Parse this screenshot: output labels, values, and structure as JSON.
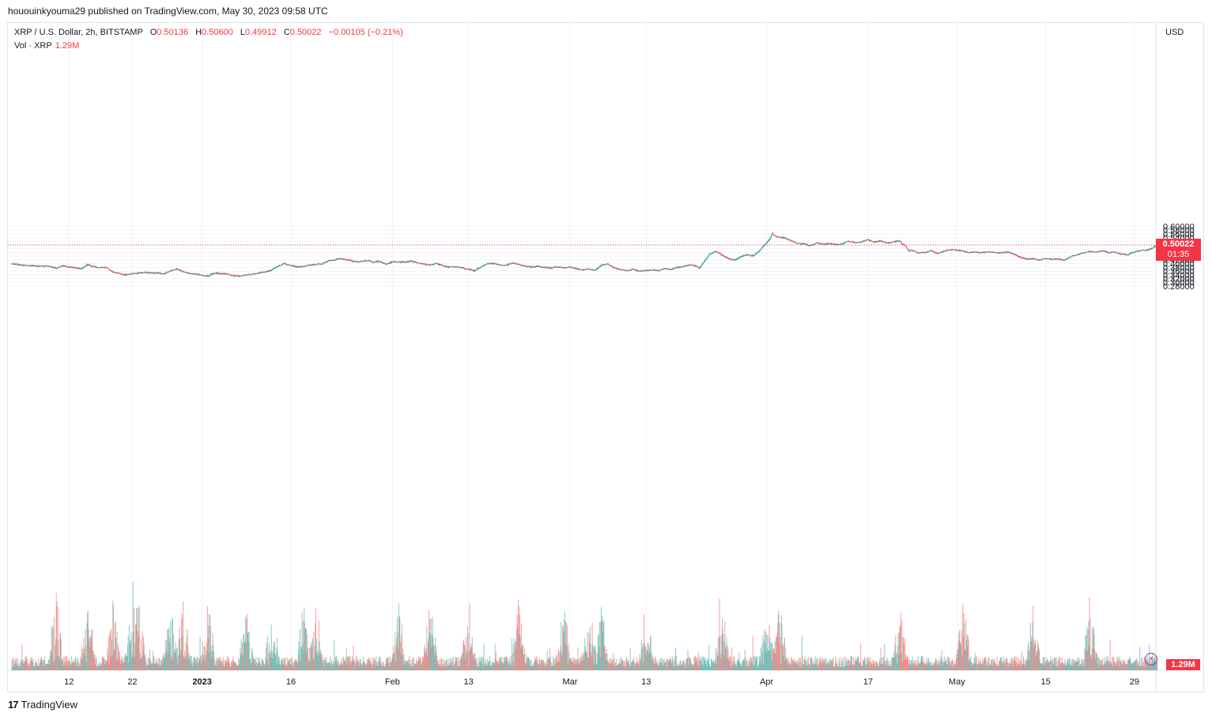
{
  "published": "hououinkyouma29 published on TradingView.com, May 30, 2023 09:58 UTC",
  "legend": {
    "symbol": "XRP / U.S. Dollar, 2h, BITSTAMP",
    "o_label": "O",
    "o_value": "0.50136",
    "h_label": "H",
    "h_value": "0.50600",
    "l_label": "L",
    "l_value": "0.49912",
    "c_label": "C",
    "c_value": "0.50022",
    "change": "−0.00105 (−0.21%)",
    "vol_label": "Vol · XRP",
    "vol_value": "1.29M"
  },
  "currency": "USD",
  "last_price": {
    "price": "0.50022",
    "countdown": "01:35"
  },
  "last_volume": "1.29M",
  "footer": {
    "logo": "17",
    "brand": "TradingView"
  },
  "colors": {
    "up": "#26a69a",
    "down": "#ef5350",
    "grid": "#f0f3fa",
    "price_line": "#f23645"
  },
  "chart_data": {
    "type": "candlestick",
    "title": "XRP / U.S. Dollar, 2h, BITSTAMP",
    "ylabel": "USD",
    "ylim": [
      0.27,
      0.61
    ],
    "yticks": [
      "0.60000",
      "0.58000",
      "0.56000",
      "0.54000",
      "0.52000",
      "0.50000",
      "0.48000",
      "0.46000",
      "0.44000",
      "0.42000",
      "0.40000",
      "0.38000",
      "0.36000",
      "0.34000",
      "0.32000",
      "0.30000",
      "0.28000"
    ],
    "ytick_values": [
      0.6,
      0.58,
      0.56,
      0.54,
      0.52,
      0.5,
      0.48,
      0.46,
      0.44,
      0.42,
      0.4,
      0.38,
      0.36,
      0.34,
      0.32,
      0.3,
      0.28
    ],
    "xticks": [
      {
        "label": "12",
        "day": 9
      },
      {
        "label": "22",
        "day": 19
      },
      {
        "label": "2023",
        "day": 30
      },
      {
        "label": "16",
        "day": 44
      },
      {
        "label": "Feb",
        "day": 60
      },
      {
        "label": "13",
        "day": 72
      },
      {
        "label": "Mar",
        "day": 88
      },
      {
        "label": "13",
        "day": 100
      },
      {
        "label": "Apr",
        "day": 119
      },
      {
        "label": "17",
        "day": 135
      },
      {
        "label": "May",
        "day": 149
      },
      {
        "label": "15",
        "day": 163
      },
      {
        "label": "29",
        "day": 177
      }
    ],
    "x_range_days": [
      -1,
      180
    ],
    "bars_per_day": 12,
    "close_path": [
      [
        0,
        0.4
      ],
      [
        2,
        0.392
      ],
      [
        4,
        0.388
      ],
      [
        6,
        0.386
      ],
      [
        7,
        0.375
      ],
      [
        8,
        0.388
      ],
      [
        10,
        0.378
      ],
      [
        11,
        0.372
      ],
      [
        12,
        0.396
      ],
      [
        13,
        0.382
      ],
      [
        15,
        0.38
      ],
      [
        16,
        0.356
      ],
      [
        17,
        0.348
      ],
      [
        18,
        0.34
      ],
      [
        19,
        0.346
      ],
      [
        21,
        0.352
      ],
      [
        23,
        0.35
      ],
      [
        24,
        0.346
      ],
      [
        25,
        0.36
      ],
      [
        26,
        0.372
      ],
      [
        27,
        0.358
      ],
      [
        28,
        0.348
      ],
      [
        29,
        0.344
      ],
      [
        30,
        0.338
      ],
      [
        31,
        0.334
      ],
      [
        32,
        0.35
      ],
      [
        34,
        0.346
      ],
      [
        35,
        0.336
      ],
      [
        36,
        0.334
      ],
      [
        37,
        0.34
      ],
      [
        38,
        0.342
      ],
      [
        39,
        0.35
      ],
      [
        40,
        0.356
      ],
      [
        41,
        0.365
      ],
      [
        42,
        0.388
      ],
      [
        43,
        0.4
      ],
      [
        44,
        0.392
      ],
      [
        45,
        0.382
      ],
      [
        46,
        0.386
      ],
      [
        47,
        0.392
      ],
      [
        49,
        0.4
      ],
      [
        50,
        0.415
      ],
      [
        52,
        0.428
      ],
      [
        53,
        0.42
      ],
      [
        54,
        0.412
      ],
      [
        55,
        0.41
      ],
      [
        56,
        0.418
      ],
      [
        57,
        0.408
      ],
      [
        58,
        0.412
      ],
      [
        59,
        0.398
      ],
      [
        60,
        0.408
      ],
      [
        61,
        0.41
      ],
      [
        62,
        0.408
      ],
      [
        63,
        0.414
      ],
      [
        64,
        0.406
      ],
      [
        65,
        0.398
      ],
      [
        66,
        0.392
      ],
      [
        67,
        0.402
      ],
      [
        68,
        0.39
      ],
      [
        69,
        0.382
      ],
      [
        70,
        0.384
      ],
      [
        71,
        0.38
      ],
      [
        72,
        0.37
      ],
      [
        73,
        0.362
      ],
      [
        74,
        0.382
      ],
      [
        75,
        0.4
      ],
      [
        76,
        0.402
      ],
      [
        77,
        0.394
      ],
      [
        78,
        0.392
      ],
      [
        79,
        0.404
      ],
      [
        80,
        0.396
      ],
      [
        81,
        0.386
      ],
      [
        82,
        0.382
      ],
      [
        83,
        0.386
      ],
      [
        84,
        0.38
      ],
      [
        85,
        0.376
      ],
      [
        86,
        0.384
      ],
      [
        87,
        0.378
      ],
      [
        88,
        0.382
      ],
      [
        89,
        0.374
      ],
      [
        90,
        0.366
      ],
      [
        91,
        0.372
      ],
      [
        92,
        0.364
      ],
      [
        93,
        0.39
      ],
      [
        94,
        0.398
      ],
      [
        95,
        0.378
      ],
      [
        96,
        0.368
      ],
      [
        97,
        0.362
      ],
      [
        98,
        0.37
      ],
      [
        99,
        0.358
      ],
      [
        100,
        0.364
      ],
      [
        101,
        0.366
      ],
      [
        102,
        0.362
      ],
      [
        103,
        0.374
      ],
      [
        104,
        0.37
      ],
      [
        105,
        0.38
      ],
      [
        106,
        0.386
      ],
      [
        107,
        0.392
      ],
      [
        108,
        0.388
      ],
      [
        108.5,
        0.376
      ],
      [
        109,
        0.4
      ],
      [
        110,
        0.448
      ],
      [
        111,
        0.468
      ],
      [
        112,
        0.448
      ],
      [
        113,
        0.428
      ],
      [
        114,
        0.418
      ],
      [
        115,
        0.438
      ],
      [
        116,
        0.448
      ],
      [
        117,
        0.442
      ],
      [
        118,
        0.472
      ],
      [
        119,
        0.51
      ],
      [
        119.5,
        0.53
      ],
      [
        120,
        0.562
      ],
      [
        120.5,
        0.548
      ],
      [
        121,
        0.542
      ],
      [
        122,
        0.538
      ],
      [
        123,
        0.522
      ],
      [
        124,
        0.508
      ],
      [
        125,
        0.506
      ],
      [
        126,
        0.496
      ],
      [
        127,
        0.51
      ],
      [
        128,
        0.504
      ],
      [
        129,
        0.508
      ],
      [
        130,
        0.502
      ],
      [
        131,
        0.506
      ],
      [
        132,
        0.522
      ],
      [
        133,
        0.512
      ],
      [
        134,
        0.516
      ],
      [
        135,
        0.528
      ],
      [
        136,
        0.516
      ],
      [
        137,
        0.522
      ],
      [
        138,
        0.51
      ],
      [
        139,
        0.516
      ],
      [
        140,
        0.524
      ],
      [
        140.5,
        0.504
      ],
      [
        141,
        0.494
      ],
      [
        141.5,
        0.468
      ],
      [
        142,
        0.47
      ],
      [
        143,
        0.458
      ],
      [
        144,
        0.46
      ],
      [
        145,
        0.47
      ],
      [
        146,
        0.454
      ],
      [
        147,
        0.466
      ],
      [
        148,
        0.476
      ],
      [
        149,
        0.472
      ],
      [
        150,
        0.468
      ],
      [
        151,
        0.46
      ],
      [
        152,
        0.462
      ],
      [
        153,
        0.458
      ],
      [
        154,
        0.464
      ],
      [
        155,
        0.46
      ],
      [
        156,
        0.458
      ],
      [
        157,
        0.462
      ],
      [
        158,
        0.452
      ],
      [
        159,
        0.436
      ],
      [
        160,
        0.424
      ],
      [
        161,
        0.428
      ],
      [
        162,
        0.42
      ],
      [
        163,
        0.428
      ],
      [
        164,
        0.424
      ],
      [
        165,
        0.426
      ],
      [
        166,
        0.42
      ],
      [
        167,
        0.438
      ],
      [
        168,
        0.448
      ],
      [
        169,
        0.458
      ],
      [
        170,
        0.466
      ],
      [
        171,
        0.462
      ],
      [
        172,
        0.468
      ],
      [
        173,
        0.46
      ],
      [
        174,
        0.462
      ],
      [
        175,
        0.452
      ],
      [
        176,
        0.448
      ],
      [
        177,
        0.462
      ],
      [
        178,
        0.47
      ],
      [
        179,
        0.472
      ],
      [
        180,
        0.486
      ],
      [
        180.6,
        0.5
      ]
    ],
    "volume_spikes_days": [
      7,
      12,
      16,
      19,
      20,
      25,
      27,
      31,
      37,
      41,
      46,
      48,
      61,
      66,
      72,
      80,
      87,
      91,
      93,
      100,
      112,
      119,
      121,
      140,
      150,
      161,
      170
    ]
  }
}
